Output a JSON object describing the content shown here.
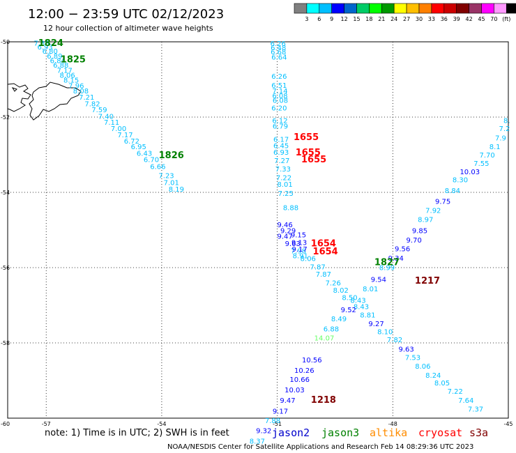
{
  "header": {
    "title": "12:00 − 23:59 UTC 02/12/2023",
    "subtitle": "12 hour collection of altimeter wave heights"
  },
  "scale": {
    "colors": [
      "#808080",
      "#00ffff",
      "#00bfff",
      "#0000ff",
      "#0066cc",
      "#00cc66",
      "#00ff00",
      "#009900",
      "#ffff00",
      "#ffbf00",
      "#ff8000",
      "#ff0000",
      "#cc0000",
      "#800000",
      "#993366",
      "#ff00ff",
      "#ff99ff",
      "#000000"
    ],
    "labels": [
      "3",
      "6",
      "9",
      "12",
      "15",
      "18",
      "21",
      "24",
      "27",
      "30",
      "33",
      "36",
      "39",
      "42",
      "45",
      "70",
      "(ft)"
    ]
  },
  "chart_data": {
    "type": "scatter",
    "xlim": [
      -58,
      -45
    ],
    "ylim": [
      -60,
      -50
    ],
    "x_ticks": [
      {
        "label": "-57",
        "value": -57
      },
      {
        "label": "-54",
        "value": -54
      },
      {
        "label": "-51",
        "value": -51
      },
      {
        "label": "-48",
        "value": -48
      },
      {
        "label": "-45",
        "value": -45
      }
    ],
    "y_ticks": [
      {
        "label": "-50",
        "value": -50
      },
      {
        "label": "-52",
        "value": -52
      },
      {
        "label": "-54",
        "value": -54
      },
      {
        "label": "-56",
        "value": -56
      },
      {
        "label": "-58",
        "value": -58
      },
      {
        "label": "-60",
        "value": -60
      }
    ],
    "x_corner_label": "-60",
    "grid": true,
    "series": [
      {
        "points": [
          [
            -57.12,
            -50.03,
            "7.38",
            "#00bfff"
          ],
          [
            -57.03,
            -50.13,
            "6.93",
            "#00bfff"
          ],
          [
            -56.9,
            -50.24,
            "6.80",
            "#00bfff"
          ],
          [
            -56.78,
            -50.37,
            "6.89",
            "#00bfff"
          ],
          [
            -56.7,
            -50.49,
            "6.84",
            "#00bfff"
          ],
          [
            -56.62,
            -50.61,
            "6.88",
            "#00bfff"
          ],
          [
            -56.52,
            -50.75,
            "7.17",
            "#00bfff"
          ],
          [
            -56.45,
            -50.88,
            "8.06",
            "#00bfff"
          ],
          [
            -56.35,
            -51.01,
            "8.15",
            "#00bfff"
          ],
          [
            -56.22,
            -51.16,
            "7.96",
            "#00bfff"
          ],
          [
            -56.1,
            -51.3,
            "8.08",
            "#00bfff"
          ],
          [
            -55.95,
            -51.46,
            "7.21",
            "#00bfff"
          ],
          [
            -55.8,
            -51.64,
            "7.82",
            "#00bfff"
          ],
          [
            -55.62,
            -51.8,
            "7.59",
            "#00bfff"
          ],
          [
            -55.45,
            -51.97,
            "7.40",
            "#00bfff"
          ],
          [
            -55.3,
            -52.13,
            "7.11",
            "#00bfff"
          ],
          [
            -55.12,
            -52.3,
            "7.00",
            "#00bfff"
          ],
          [
            -54.95,
            -52.46,
            "7.17",
            "#00bfff"
          ],
          [
            -54.78,
            -52.63,
            "6.72",
            "#00bfff"
          ],
          [
            -54.6,
            -52.78,
            "6.95",
            "#00bfff"
          ],
          [
            -54.45,
            -52.95,
            "6.43",
            "#00bfff"
          ],
          [
            -54.27,
            -53.12,
            "6.70",
            "#00bfff"
          ],
          [
            -54.1,
            -53.31,
            "6.66",
            "#00bfff"
          ],
          [
            -53.88,
            -53.55,
            "7.23",
            "#00bfff"
          ],
          [
            -53.75,
            -53.73,
            "7.01",
            "#00bfff"
          ],
          [
            -53.62,
            -53.91,
            "8.19",
            "#00bfff"
          ],
          [
            -50.8,
            -54.85,
            "9.46",
            "#0000ff"
          ],
          [
            -50.72,
            -55.01,
            "9.29",
            "#0000ff"
          ],
          [
            -50.8,
            -55.16,
            "9.47",
            "#0000ff"
          ],
          [
            -50.6,
            -55.35,
            "9.63",
            "#0000ff"
          ],
          [
            -50.45,
            -55.55,
            "7.98",
            "#00bfff"
          ],
          [
            -50.2,
            -55.75,
            "8.06",
            "#00bfff"
          ],
          [
            -49.95,
            -55.97,
            "7.87",
            "#00bfff"
          ],
          [
            -49.8,
            -56.17,
            "7.87",
            "#00bfff"
          ],
          [
            -49.55,
            -56.4,
            "7.26",
            "#00bfff"
          ],
          [
            -49.35,
            -56.59,
            "8.02",
            "#00bfff"
          ],
          [
            -49.12,
            -56.79,
            "8.50",
            "#00bfff"
          ],
          [
            -48.82,
            -57.03,
            "8.43",
            "#00bfff"
          ],
          [
            -48.65,
            -57.25,
            "8.81",
            "#00bfff"
          ],
          [
            -48.43,
            -57.48,
            "9.27",
            "#0000ff"
          ],
          [
            -48.2,
            -57.69,
            "8.10",
            "#00bfff"
          ],
          [
            -47.95,
            -57.91,
            "7.82",
            "#00bfff"
          ],
          [
            -47.65,
            -58.16,
            "9.63",
            "#0000ff"
          ],
          [
            -47.48,
            -58.38,
            "7.53",
            "#00bfff"
          ],
          [
            -47.22,
            -58.61,
            "8.06",
            "#00bfff"
          ],
          [
            -46.95,
            -58.85,
            "8.24",
            "#00bfff"
          ],
          [
            -46.72,
            -59.06,
            "8.05",
            "#00bfff"
          ],
          [
            -46.38,
            -59.28,
            "7.22",
            "#00bfff"
          ],
          [
            -46.1,
            -59.52,
            "7.64",
            "#00bfff"
          ],
          [
            -45.85,
            -59.75,
            "7.37",
            "#00bfff"
          ]
        ]
      },
      {
        "points": [
          [
            -50.98,
            -50.04,
            "6.26",
            "#00bfff"
          ],
          [
            -50.97,
            -50.15,
            "6.48",
            "#00bfff"
          ],
          [
            -50.97,
            -50.26,
            "6.68",
            "#00bfff"
          ],
          [
            -50.95,
            -50.4,
            "6.64",
            "#00bfff"
          ],
          [
            -50.95,
            -50.91,
            "6.26",
            "#00bfff"
          ],
          [
            -50.95,
            -51.15,
            "6.51",
            "#00bfff"
          ],
          [
            -50.93,
            -51.3,
            "7.14",
            "#00bfff"
          ],
          [
            -50.93,
            -51.43,
            "6.08",
            "#00bfff"
          ],
          [
            -50.92,
            -51.55,
            "6.08",
            "#00bfff"
          ],
          [
            -50.95,
            -51.75,
            "6.20",
            "#00bfff"
          ],
          [
            -50.93,
            -52.08,
            "6.12",
            "#00bfff"
          ],
          [
            -50.92,
            -52.23,
            "6.79",
            "#00bfff"
          ],
          [
            -50.9,
            -52.58,
            "6.17",
            "#00bfff"
          ],
          [
            -50.9,
            -52.75,
            "6.45",
            "#00bfff"
          ],
          [
            -50.9,
            -52.93,
            "6.93",
            "#00bfff"
          ],
          [
            -50.88,
            -53.15,
            "7.27",
            "#00bfff"
          ],
          [
            -50.85,
            -53.37,
            "7.33",
            "#00bfff"
          ],
          [
            -50.83,
            -53.6,
            "7.22",
            "#00bfff"
          ],
          [
            -50.8,
            -53.78,
            "8.01",
            "#00bfff"
          ],
          [
            -50.78,
            -54.02,
            "7.25",
            "#00bfff"
          ],
          [
            -50.65,
            -54.4,
            "8.88",
            "#00bfff"
          ],
          [
            -50.45,
            -55.12,
            "9.15",
            "#0000ff"
          ],
          [
            -50.43,
            -55.32,
            "9.13",
            "#0000ff"
          ],
          [
            -50.42,
            -55.5,
            "9.17",
            "#0000ff"
          ],
          [
            -50.4,
            -55.68,
            "8.91",
            "#00bfff"
          ]
        ]
      },
      {
        "points": [
          [
            -45.04,
            -52.08,
            "8.",
            "#00bfff"
          ],
          [
            -45.1,
            -52.3,
            "7.2",
            "#00bfff"
          ],
          [
            -45.2,
            -52.55,
            "7.9",
            "#00bfff"
          ],
          [
            -45.35,
            -52.78,
            "8.1",
            "#00bfff"
          ],
          [
            -45.55,
            -53.0,
            "7.70",
            "#00bfff"
          ],
          [
            -45.7,
            -53.22,
            "7.55",
            "#00bfff"
          ],
          [
            -46.0,
            -53.44,
            "10.03",
            "#0000ff"
          ],
          [
            -46.25,
            -53.66,
            "8.30",
            "#00bfff"
          ],
          [
            -46.45,
            -53.94,
            "8.84",
            "#00bfff"
          ],
          [
            -46.7,
            -54.23,
            "9.75",
            "#0000ff"
          ],
          [
            -46.95,
            -54.47,
            "7.92",
            "#00bfff"
          ],
          [
            -47.15,
            -54.71,
            "8.97",
            "#00bfff"
          ],
          [
            -47.3,
            -55.01,
            "9.85",
            "#0000ff"
          ],
          [
            -47.45,
            -55.26,
            "9.70",
            "#0000ff"
          ],
          [
            -47.75,
            -55.49,
            "9.56",
            "#0000ff"
          ],
          [
            -47.92,
            -55.74,
            "9.34",
            "#0000ff"
          ],
          [
            -48.15,
            -55.99,
            "8.99",
            "#00bfff"
          ],
          [
            -48.37,
            -56.31,
            "9.54",
            "#0000ff"
          ],
          [
            -48.58,
            -56.56,
            "8.01",
            "#00bfff"
          ],
          [
            -48.9,
            -56.86,
            "8.43",
            "#00bfff"
          ],
          [
            -49.15,
            -57.11,
            "9.52",
            "#0000ff"
          ],
          [
            -49.4,
            -57.35,
            "8.49",
            "#00bfff"
          ],
          [
            -49.6,
            -57.62,
            "6.88",
            "#00bfff"
          ],
          [
            -49.78,
            -57.86,
            "14.07",
            "#66ff66"
          ],
          [
            -50.1,
            -58.44,
            "10.56",
            "#0000ff"
          ],
          [
            -50.3,
            -58.72,
            "10.26",
            "#0000ff"
          ],
          [
            -50.42,
            -58.96,
            "10.66",
            "#0000ff"
          ],
          [
            -50.55,
            -59.24,
            "10.03",
            "#0000ff"
          ],
          [
            -50.73,
            -59.52,
            "9.47",
            "#0000ff"
          ],
          [
            -50.92,
            -59.81,
            "9.17",
            "#0000ff"
          ],
          [
            -51.12,
            -60.06,
            "7.88",
            "#00bfff"
          ],
          [
            -51.35,
            -60.32,
            "9.32",
            "#0000ff"
          ],
          [
            -51.52,
            -60.6,
            "8.37",
            "#00bfff"
          ]
        ]
      }
    ],
    "time_labels": [
      {
        "text": "1824",
        "x": -56.88,
        "y": -50.02,
        "color": "#008000"
      },
      {
        "text": "1825",
        "x": -56.3,
        "y": -50.45,
        "color": "#008000"
      },
      {
        "text": "1826",
        "x": -53.75,
        "y": -53.0,
        "color": "#008000"
      },
      {
        "text": "1827",
        "x": -48.15,
        "y": -55.84,
        "color": "#008000"
      },
      {
        "text": "1655",
        "x": -50.25,
        "y": -52.52,
        "color": "#ff0000"
      },
      {
        "text": "1655",
        "x": -50.2,
        "y": -52.93,
        "color": "#ff0000"
      },
      {
        "text": "1655",
        "x": -50.05,
        "y": -53.11,
        "color": "#ff0000"
      },
      {
        "text": "1654",
        "x": -49.8,
        "y": -55.34,
        "color": "#ff0000"
      },
      {
        "text": "1654",
        "x": -49.75,
        "y": -55.56,
        "color": "#ff0000"
      },
      {
        "text": "1217",
        "x": -47.1,
        "y": -56.33,
        "color": "#800000"
      },
      {
        "text": "1218",
        "x": -49.8,
        "y": -59.5,
        "color": "#800000"
      }
    ],
    "land_color": "#000000"
  },
  "footer": {
    "note": "note:  1) Time is in UTC;  2) SWH is in feet",
    "satellites": [
      {
        "name": "jason2",
        "color": "#0000cc"
      },
      {
        "name": "jason3",
        "color": "#008000"
      },
      {
        "name": "altika",
        "color": "#ff8c00"
      },
      {
        "name": "cryosat",
        "color": "#ff0000"
      },
      {
        "name": "s3a",
        "color": "#800000"
      }
    ],
    "credit": "NOAA/NESDIS Center for Satellite Applications and Research     Feb 14 08:29:36 UTC 2023"
  }
}
